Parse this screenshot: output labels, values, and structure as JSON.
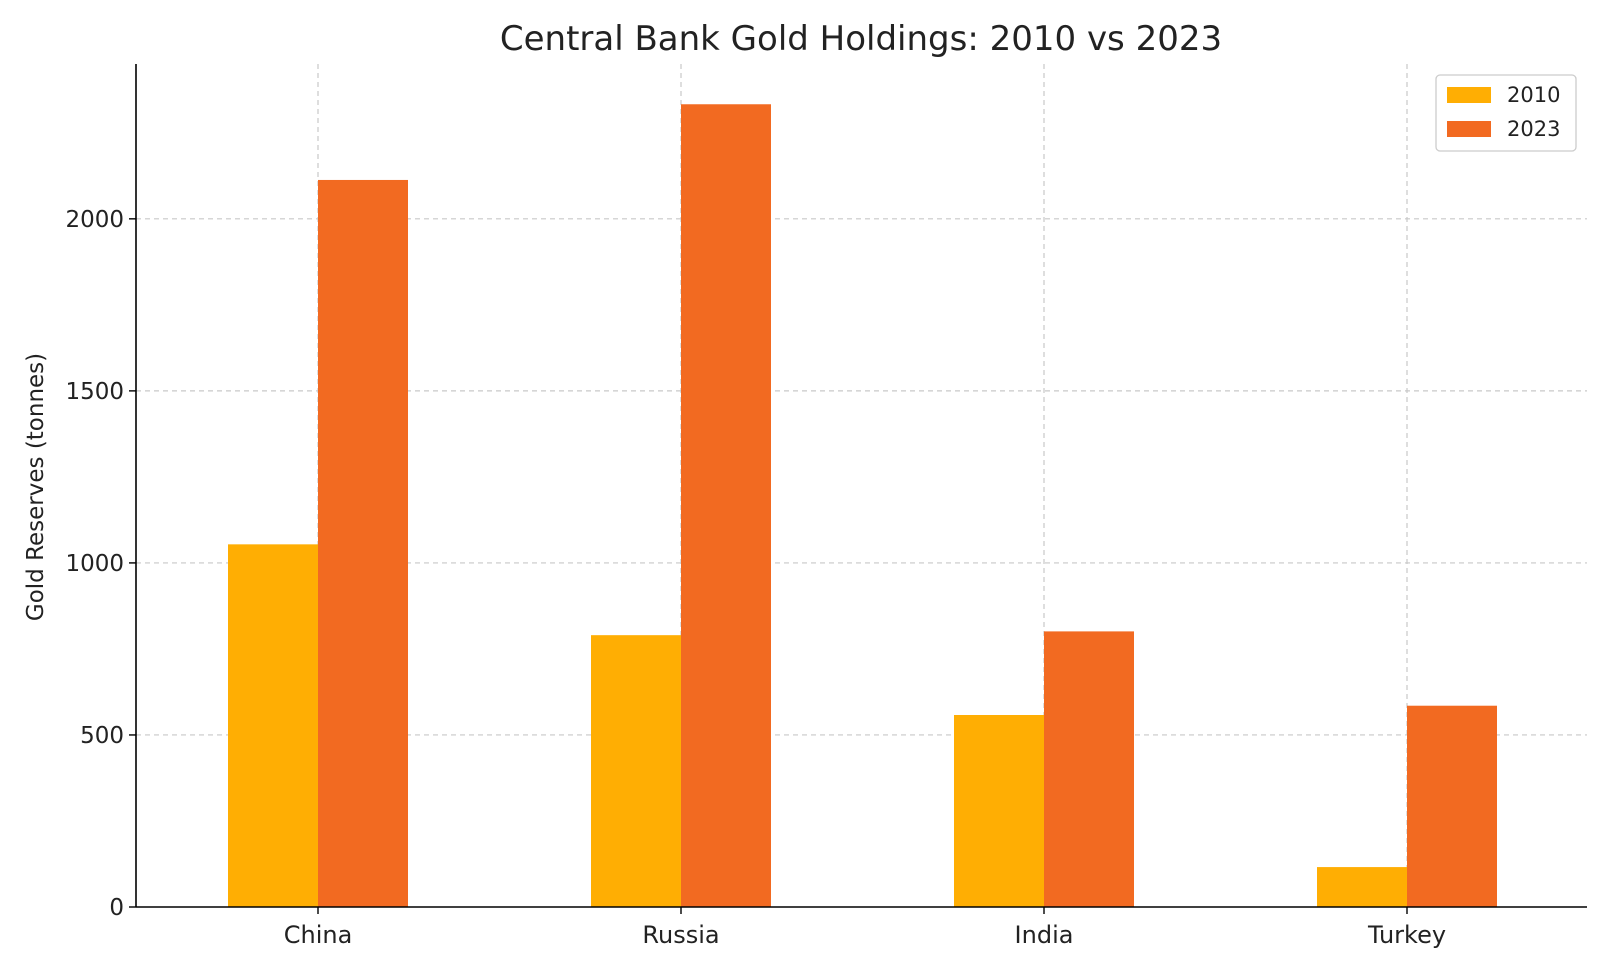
{
  "chart_data": {
    "type": "bar",
    "title": "Central Bank Gold Holdings: 2010 vs 2023",
    "xlabel": "",
    "ylabel": "Gold Reserves (tonnes)",
    "categories": [
      "China",
      "Russia",
      "India",
      "Turkey"
    ],
    "series": [
      {
        "name": "2010",
        "values": [
          1054,
          790,
          558,
          116
        ],
        "color": "#FFAE03"
      },
      {
        "name": "2023",
        "values": [
          2113,
          2333,
          801,
          585
        ],
        "color": "#F26A21"
      }
    ],
    "ylim": [
      0,
      2450
    ],
    "yticks": [
      0,
      500,
      1000,
      1500,
      2000
    ],
    "grid": true,
    "legend_position": "top-right"
  }
}
